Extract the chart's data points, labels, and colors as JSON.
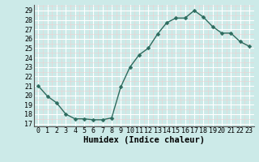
{
  "x": [
    0,
    1,
    2,
    3,
    4,
    5,
    6,
    7,
    8,
    9,
    10,
    11,
    12,
    13,
    14,
    15,
    16,
    17,
    18,
    19,
    20,
    21,
    22,
    23
  ],
  "y": [
    21.0,
    19.9,
    19.2,
    18.0,
    17.5,
    17.5,
    17.4,
    17.4,
    17.6,
    20.9,
    23.0,
    24.3,
    25.0,
    26.5,
    27.7,
    28.2,
    28.2,
    29.0,
    28.3,
    27.3,
    26.6,
    26.6,
    25.7,
    25.2
  ],
  "line_color": "#2d6b5e",
  "marker": "D",
  "marker_size": 2.5,
  "bg_color": "#cceae8",
  "grid_color": "#ffffff",
  "grid_minor_color": "#e8c8c8",
  "xlabel": "Humidex (Indice chaleur)",
  "ylabel_ticks": [
    17,
    18,
    19,
    20,
    21,
    22,
    23,
    24,
    25,
    26,
    27,
    28,
    29
  ],
  "ylim": [
    16.7,
    29.6
  ],
  "xlim": [
    -0.5,
    23.5
  ],
  "tick_fontsize": 6,
  "xlabel_fontsize": 7.5,
  "linewidth": 1.0
}
